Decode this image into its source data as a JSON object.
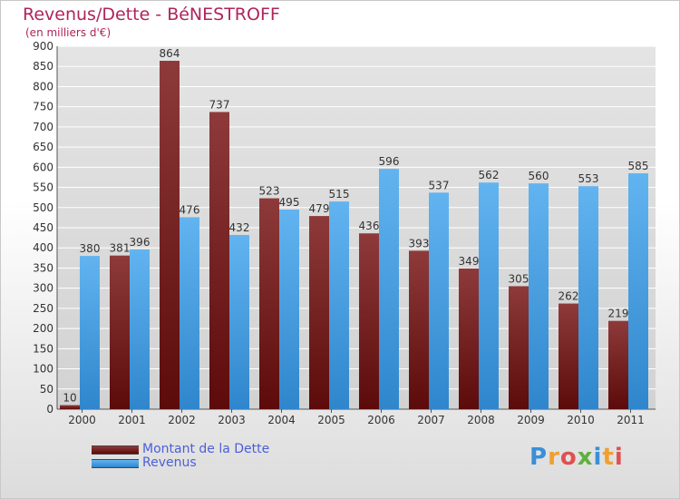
{
  "header": {
    "title": "Revenus/Dette - BéNESTROFF",
    "subtitle": "(en milliers d'€)"
  },
  "legend": {
    "items": [
      {
        "label": "Montant de la Dette",
        "color": "#7a1c1c"
      },
      {
        "label": "Revenus",
        "color": "#4aa3e8"
      }
    ]
  },
  "logo": {
    "text": "Proxiti"
  },
  "colors": {
    "title": "#b0245a",
    "dette_dark": "#5c0a0a",
    "dette_light": "#8e3a3a",
    "revenus_dark": "#2f86cc",
    "revenus_light": "#62b4f0",
    "grid": "#ffffff",
    "label": "#333333"
  },
  "chart_data": {
    "type": "bar",
    "title": "Revenus/Dette - BéNESTROFF",
    "ylabel": "(en milliers d'€)",
    "ylim": [
      0,
      900
    ],
    "yticks": [
      0,
      50,
      100,
      150,
      200,
      250,
      300,
      350,
      400,
      450,
      500,
      550,
      600,
      650,
      700,
      750,
      800,
      850,
      900
    ],
    "categories": [
      "2000",
      "2001",
      "2002",
      "2003",
      "2004",
      "2005",
      "2006",
      "2007",
      "2008",
      "2009",
      "2010",
      "2011"
    ],
    "series": [
      {
        "name": "Montant de la Dette",
        "values": [
          10,
          381,
          864,
          737,
          523,
          479,
          436,
          393,
          349,
          305,
          262,
          219
        ]
      },
      {
        "name": "Revenus",
        "values": [
          380,
          396,
          476,
          432,
          495,
          515,
          596,
          537,
          562,
          560,
          553,
          585
        ]
      }
    ],
    "grid": true,
    "legend": "bottom-left"
  }
}
